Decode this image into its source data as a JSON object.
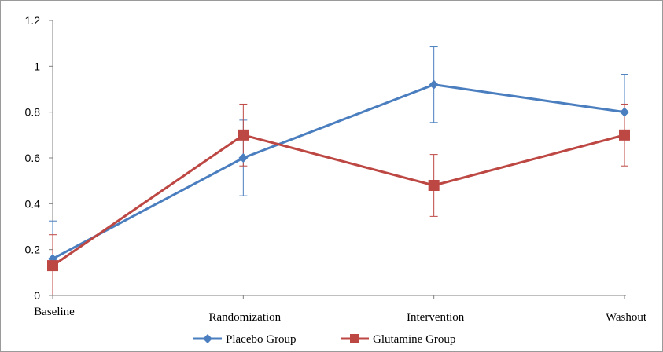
{
  "chart_data": {
    "type": "line",
    "categories": [
      "Baseline",
      "Randomization",
      "Intervention",
      "Washout"
    ],
    "ylim": [
      0,
      1.2
    ],
    "yticks": [
      0,
      0.2,
      0.4,
      0.6,
      0.8,
      1,
      1.2
    ],
    "ytick_labels": [
      "0",
      "0.2",
      "0.4",
      "0.6",
      "0.8",
      "1",
      "1.2"
    ],
    "grid": false,
    "legend_position": "bottom",
    "series": [
      {
        "name": "Placebo Group",
        "color": "#4a7ebf",
        "marker": "diamond",
        "values": [
          0.16,
          0.6,
          0.92,
          0.8
        ],
        "error_low": [
          0.0,
          0.435,
          0.755,
          0.8
        ],
        "error_high": [
          0.325,
          0.765,
          1.085,
          0.965
        ]
      },
      {
        "name": "Glutamine Group",
        "color": "#bd4743",
        "marker": "square",
        "values": [
          0.13,
          0.7,
          0.48,
          0.7
        ],
        "error_low": [
          0.0,
          0.565,
          0.345,
          0.565
        ],
        "error_high": [
          0.265,
          0.835,
          0.615,
          0.835
        ]
      }
    ]
  }
}
